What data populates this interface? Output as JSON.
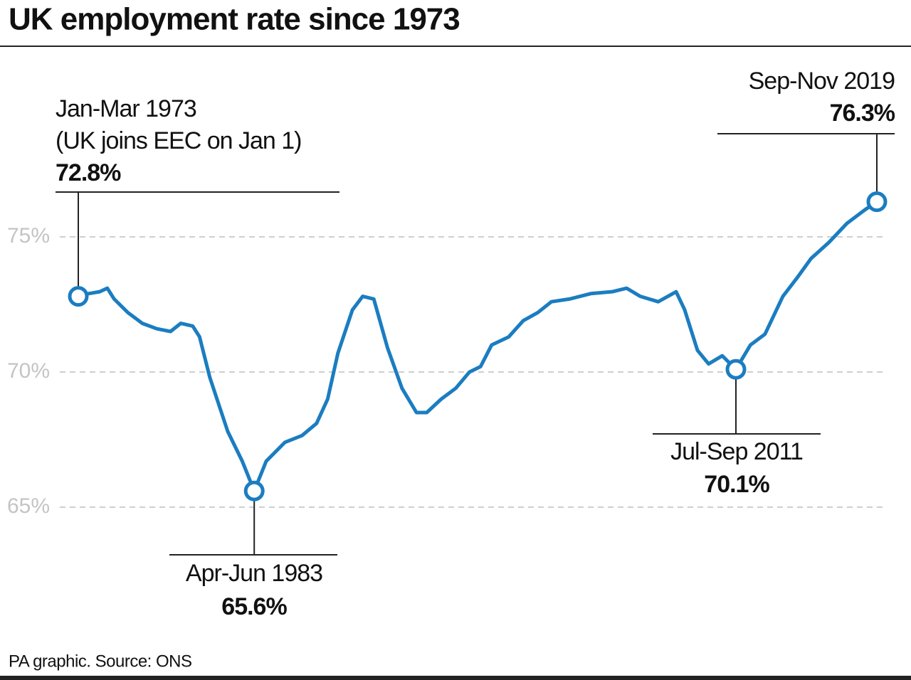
{
  "chart_data": {
    "type": "line",
    "title": "UK employment rate since 1973",
    "source": "PA graphic. Source: ONS",
    "x": [
      1973.1,
      1973.7,
      1974.35,
      1974.8,
      1975.2,
      1976.0,
      1976.85,
      1977.7,
      1978.5,
      1979.1,
      1979.8,
      1980.2,
      1980.8,
      1981.85,
      1982.7,
      1983.4,
      1984.1,
      1985.2,
      1986.2,
      1987.05,
      1987.7,
      1988.3,
      1989.15,
      1989.75,
      1990.4,
      1991.2,
      1992.05,
      1992.9,
      1993.5,
      1994.35,
      1995.2,
      1996.0,
      1996.65,
      1997.3,
      1998.3,
      1999.15,
      2000.0,
      2000.8,
      2001.85,
      2003.1,
      2004.35,
      2005.2,
      2006.0,
      2007.05,
      2008.1,
      2008.6,
      2009.35,
      2010.0,
      2010.8,
      2011.6,
      2012.45,
      2013.3,
      2014.35,
      2015.2,
      2016.0,
      2017.05,
      2018.1,
      2019.15,
      2019.85
    ],
    "series": [
      {
        "name": "Employment rate",
        "color": "#1b7dc0",
        "values": [
          72.8,
          72.9,
          72.97,
          73.1,
          72.7,
          72.2,
          71.8,
          71.6,
          71.5,
          71.8,
          71.7,
          71.3,
          69.8,
          67.8,
          66.7,
          65.6,
          66.7,
          67.4,
          67.65,
          68.1,
          69.0,
          70.7,
          72.3,
          72.8,
          72.7,
          70.9,
          69.4,
          68.5,
          68.5,
          69.0,
          69.4,
          70.0,
          70.2,
          71.0,
          71.3,
          71.9,
          72.2,
          72.6,
          72.7,
          72.9,
          72.97,
          73.1,
          72.8,
          72.6,
          72.97,
          72.3,
          70.8,
          70.3,
          70.6,
          70.1,
          71.0,
          71.4,
          72.8,
          73.5,
          74.2,
          74.8,
          75.5,
          76.0,
          76.3
        ]
      }
    ],
    "xlim": [
      1973.1,
      2019.85
    ],
    "ylim": [
      63,
      77
    ],
    "yticks": [
      {
        "value": 65,
        "label": "65%"
      },
      {
        "value": 70,
        "label": "70%"
      },
      {
        "value": 75,
        "label": "75%"
      }
    ],
    "grid": true,
    "annotations": [
      {
        "label": "Jan-Mar 1973",
        "note": "(UK joins EEC on Jan 1)",
        "x": 1973.1,
        "value": 72.8,
        "value_label": "72.8%"
      },
      {
        "label": "Apr-Jun 1983",
        "x": 1983.4,
        "value": 65.6,
        "value_label": "65.6%"
      },
      {
        "label": "Jul-Sep 2011",
        "x": 2011.6,
        "value": 70.1,
        "value_label": "70.1%"
      },
      {
        "label": "Sep-Nov 2019",
        "x": 2019.85,
        "value": 76.3,
        "value_label": "76.3%"
      }
    ]
  }
}
